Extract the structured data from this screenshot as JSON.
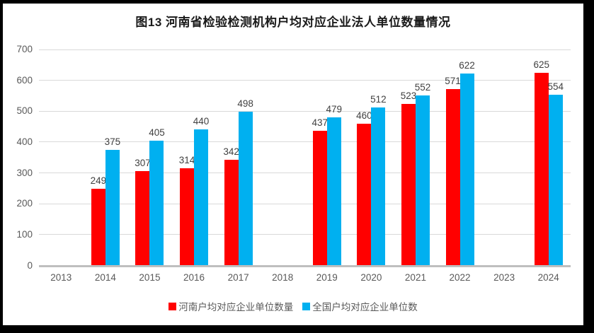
{
  "title": "图13  河南省检验检测机构户均对应企业法人单位数量情况",
  "chart_data": {
    "type": "bar",
    "title": "图13  河南省检验检测机构户均对应企业法人单位数量情况",
    "categories": [
      "2013",
      "2014",
      "2015",
      "2016",
      "2017",
      "2018",
      "2019",
      "2020",
      "2021",
      "2022",
      "2023",
      "2024"
    ],
    "series": [
      {
        "name": "河南户均对应企业单位数量",
        "color": "#ff0000",
        "values": [
          null,
          249,
          307,
          314,
          342,
          null,
          437,
          460,
          523,
          571,
          null,
          625
        ]
      },
      {
        "name": "全国户均对应企业单位数",
        "color": "#00b0f0",
        "values": [
          null,
          375,
          405,
          440,
          498,
          null,
          479,
          512,
          552,
          622,
          null,
          554
        ]
      }
    ],
    "ylim": [
      0,
      700
    ],
    "yticks": [
      0,
      100,
      200,
      300,
      400,
      500,
      600,
      700
    ],
    "xlabel": "",
    "ylabel": "",
    "grid": true,
    "legend_position": "bottom",
    "data_labels": true
  },
  "colors": {
    "series_henan": "#ff0000",
    "series_national": "#00b0f0",
    "gridline": "#d9d9d9",
    "axis_line": "#bfbfbf",
    "axis_text": "#595959",
    "data_label_text": "#404040",
    "background": "#ffffff",
    "screen_edge": "#000000"
  }
}
